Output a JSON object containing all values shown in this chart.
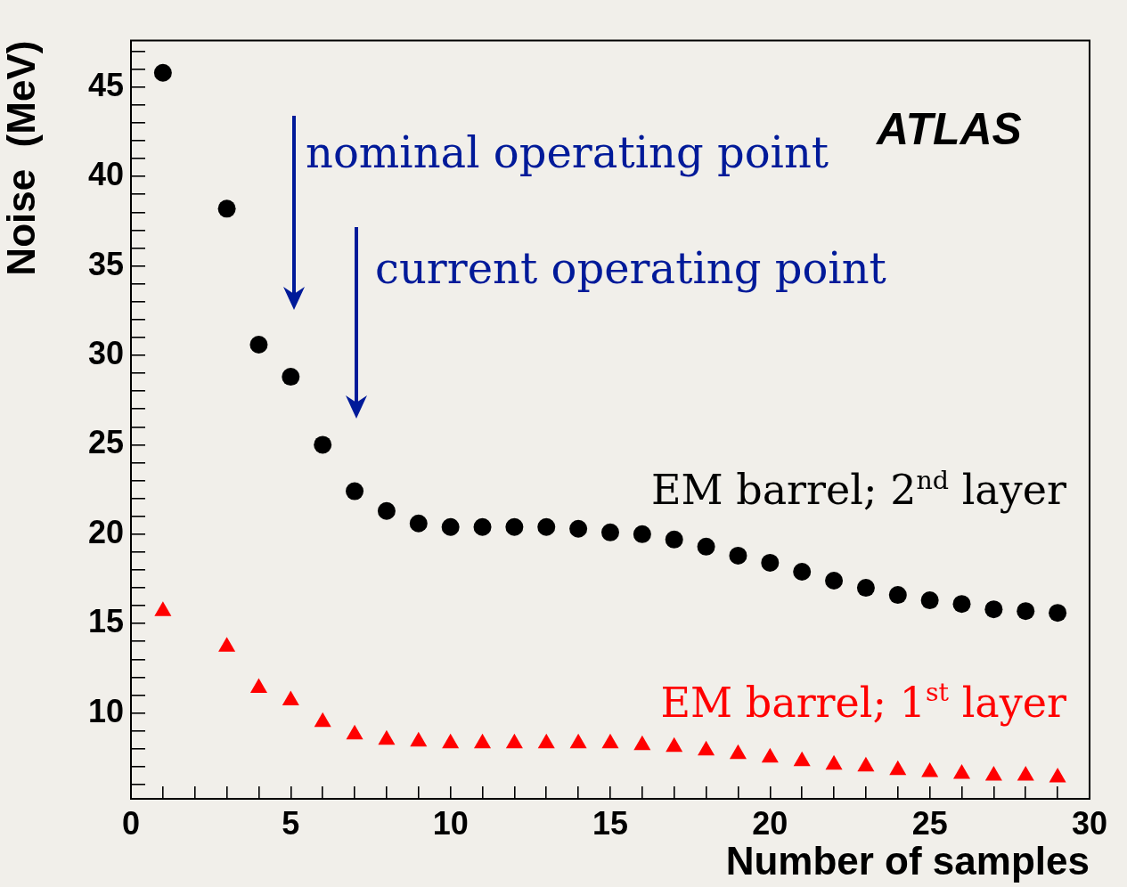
{
  "chart_data": {
    "type": "scatter",
    "xlabel": "Number of samples",
    "ylabel": "Noise  (MeV)",
    "xlim": [
      0,
      30
    ],
    "ylim": [
      5.2,
      47.6
    ],
    "xticks": [
      0,
      {
        "value": 1,
        "label": null
      },
      {
        "value": 2,
        "label": null
      },
      {
        "value": 3,
        "label": null
      },
      {
        "value": 4,
        "label": null
      },
      5,
      {
        "value": 6,
        "label": null
      },
      {
        "value": 7,
        "label": null
      },
      {
        "value": 8,
        "label": null
      },
      {
        "value": 9,
        "label": null
      },
      10,
      {
        "value": 11,
        "label": null
      },
      {
        "value": 12,
        "label": null
      },
      {
        "value": 13,
        "label": null
      },
      {
        "value": 14,
        "label": null
      },
      15,
      {
        "value": 16,
        "label": null
      },
      {
        "value": 17,
        "label": null
      },
      {
        "value": 18,
        "label": null
      },
      {
        "value": 19,
        "label": null
      },
      20,
      {
        "value": 21,
        "label": null
      },
      {
        "value": 22,
        "label": null
      },
      {
        "value": 23,
        "label": null
      },
      {
        "value": 24,
        "label": null
      },
      25,
      {
        "value": 26,
        "label": null
      },
      {
        "value": 27,
        "label": null
      },
      {
        "value": 28,
        "label": null
      },
      {
        "value": 29,
        "label": null
      },
      30
    ],
    "yticks": [
      {
        "value": 6,
        "label": null
      },
      {
        "value": 7,
        "label": null
      },
      {
        "value": 8,
        "label": null
      },
      {
        "value": 9,
        "label": null
      },
      10,
      {
        "value": 11,
        "label": null
      },
      {
        "value": 12,
        "label": null
      },
      {
        "value": 13,
        "label": null
      },
      {
        "value": 14,
        "label": null
      },
      15,
      {
        "value": 16,
        "label": null
      },
      {
        "value": 17,
        "label": null
      },
      {
        "value": 18,
        "label": null
      },
      {
        "value": 19,
        "label": null
      },
      20,
      {
        "value": 21,
        "label": null
      },
      {
        "value": 22,
        "label": null
      },
      {
        "value": 23,
        "label": null
      },
      {
        "value": 24,
        "label": null
      },
      25,
      {
        "value": 26,
        "label": null
      },
      {
        "value": 27,
        "label": null
      },
      {
        "value": 28,
        "label": null
      },
      {
        "value": 29,
        "label": null
      },
      30,
      {
        "value": 31,
        "label": null
      },
      {
        "value": 32,
        "label": null
      },
      {
        "value": 33,
        "label": null
      },
      {
        "value": 34,
        "label": null
      },
      35,
      {
        "value": 36,
        "label": null
      },
      {
        "value": 37,
        "label": null
      },
      {
        "value": 38,
        "label": null
      },
      {
        "value": 39,
        "label": null
      },
      40,
      {
        "value": 41,
        "label": null
      },
      {
        "value": 42,
        "label": null
      },
      {
        "value": 43,
        "label": null
      },
      {
        "value": 44,
        "label": null
      },
      45,
      {
        "value": 46,
        "label": null
      },
      {
        "value": 47,
        "label": null
      }
    ],
    "grid": false,
    "legend": false,
    "series": [
      {
        "name": "EM barrel; 2$^{nd}$ layer",
        "color": "#000000",
        "marker": "circle",
        "x": [
          1,
          3,
          4,
          5,
          6,
          7,
          8,
          9,
          10,
          11,
          12,
          13,
          14,
          15,
          16,
          17,
          18,
          19,
          20,
          21,
          22,
          23,
          24,
          25,
          26,
          27,
          28,
          29
        ],
        "values": [
          45.8,
          38.2,
          30.6,
          28.8,
          25.0,
          22.4,
          21.3,
          20.6,
          20.4,
          20.4,
          20.4,
          20.4,
          20.3,
          20.1,
          20.0,
          19.7,
          19.3,
          18.8,
          18.4,
          17.9,
          17.4,
          17.0,
          16.6,
          16.3,
          16.1,
          15.8,
          15.7,
          15.6
        ]
      },
      {
        "name": "EM barrel; 1$^{st}$ layer",
        "color": "#ff0000",
        "marker": "triangle",
        "x": [
          1,
          3,
          4,
          5,
          6,
          7,
          8,
          9,
          10,
          11,
          12,
          13,
          14,
          15,
          16,
          17,
          18,
          19,
          20,
          21,
          22,
          23,
          24,
          25,
          26,
          27,
          28,
          29
        ],
        "values": [
          15.7,
          13.7,
          11.4,
          10.7,
          9.5,
          8.8,
          8.5,
          8.4,
          8.3,
          8.3,
          8.3,
          8.3,
          8.3,
          8.3,
          8.2,
          8.1,
          7.9,
          7.7,
          7.5,
          7.3,
          7.1,
          7.0,
          6.8,
          6.7,
          6.6,
          6.5,
          6.5,
          6.4
        ]
      }
    ],
    "annotations": [
      "nominal operating point",
      "current operating point",
      "ATLAS"
    ]
  }
}
